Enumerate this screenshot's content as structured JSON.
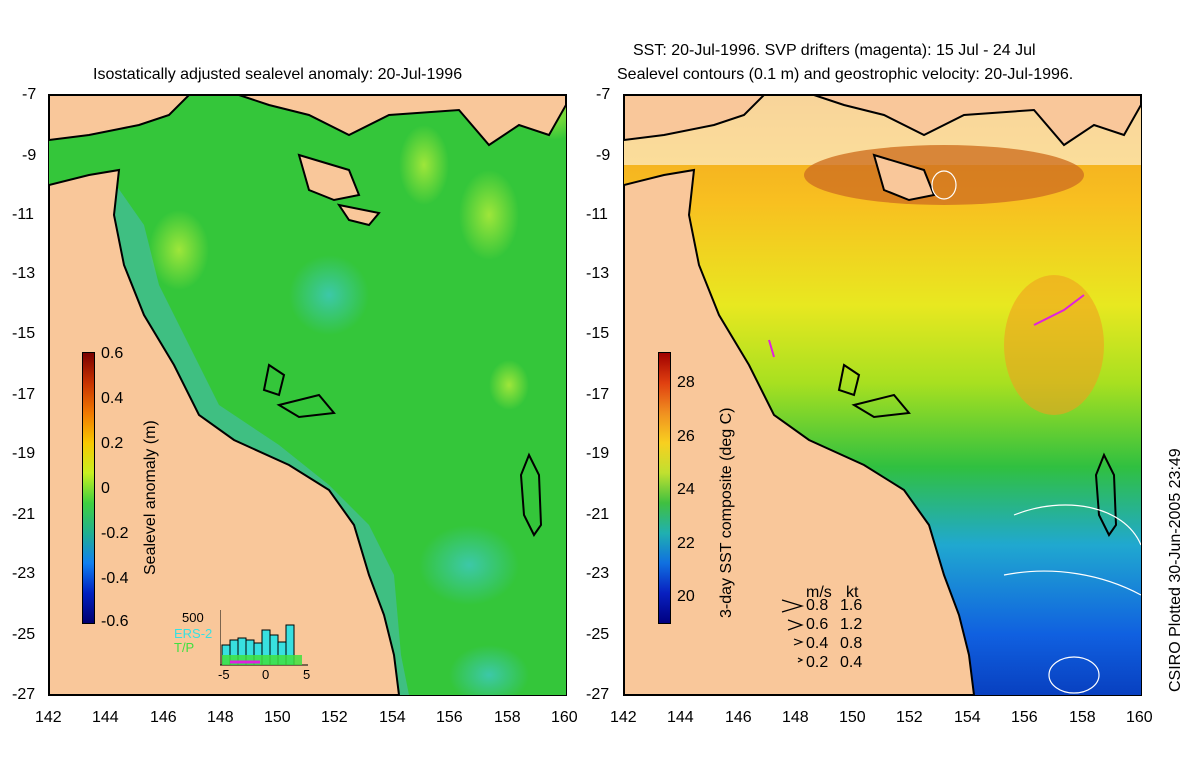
{
  "left_panel": {
    "title": "Isostatically adjusted sealevel anomaly: 20-Jul-1996",
    "colorbar": {
      "label": "Sealevel anomaly (m)",
      "ticks": [
        "0.6",
        "0.4",
        "0.2",
        "0",
        "-0.2",
        "-0.4",
        "-0.6"
      ]
    },
    "histogram": {
      "ymax_label": "500",
      "series_labels": [
        "ERS-2",
        "T/P"
      ],
      "xticks": [
        "-5",
        "0",
        "5"
      ]
    }
  },
  "right_panel": {
    "title_line1": "SST: 20-Jul-1996. SVP drifters (magenta): 15 Jul - 24 Jul",
    "title_line2": "Sealevel contours (0.1 m) and geostrophic velocity: 20-Jul-1996.",
    "colorbar": {
      "label": "3-day SST composite (deg C)",
      "ticks": [
        "28",
        "26",
        "24",
        "22",
        "20"
      ]
    },
    "velocity_legend": {
      "header_ms": "m/s",
      "header_kt": "kt",
      "rows": [
        {
          "ms": "0.8",
          "kt": "1.6"
        },
        {
          "ms": "0.6",
          "kt": "1.2"
        },
        {
          "ms": "0.4",
          "kt": "0.8"
        },
        {
          "ms": "0.2",
          "kt": "0.4"
        }
      ]
    }
  },
  "axes": {
    "y_ticks": [
      "-7",
      "-9",
      "-11",
      "-13",
      "-15",
      "-17",
      "-19",
      "-21",
      "-23",
      "-25",
      "-27"
    ],
    "x_ticks": [
      "142",
      "144",
      "146",
      "148",
      "150",
      "152",
      "154",
      "156",
      "158",
      "160"
    ]
  },
  "credit": "CSIRO Plotted 30-Jun-2005 23:49",
  "colors": {
    "land": "#f9c79a",
    "ocean_green": "#33c832",
    "shelf_teal": "#3dbb8a",
    "coast": "#000000"
  }
}
